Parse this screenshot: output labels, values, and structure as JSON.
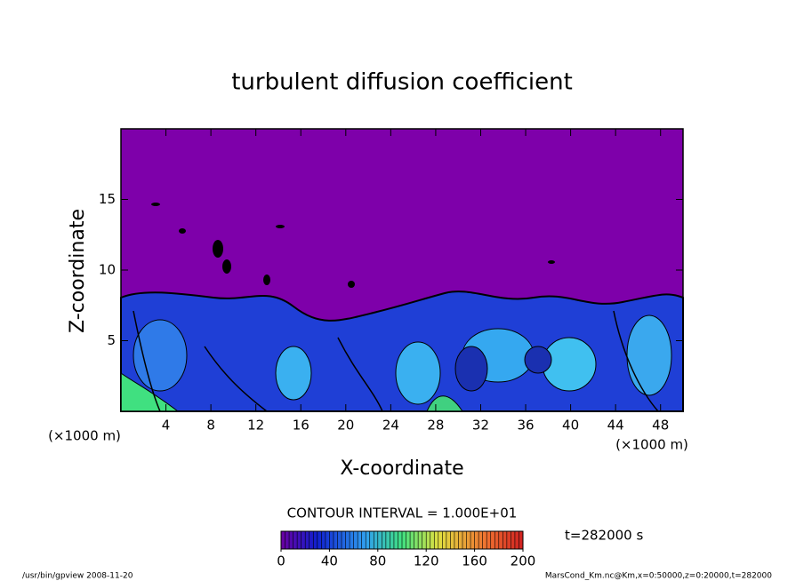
{
  "chart_data": {
    "type": "contour",
    "title": "turbulent diffusion coefficient",
    "xlabel": "X-coordinate",
    "ylabel": "Z-coordinate",
    "x_unit": "(×1000 m)",
    "y_unit": "(×1000 m)",
    "xlim": [
      0,
      50
    ],
    "xticks": [
      4,
      8,
      12,
      16,
      20,
      24,
      28,
      32,
      36,
      40,
      44,
      48
    ],
    "ylim": [
      0,
      20
    ],
    "yticks": [
      5,
      10,
      15
    ],
    "contour_interval": "CONTOUR INTERVAL = 1.000E+01",
    "time_label": "t=282000 s",
    "colorbar": {
      "lim": [
        0,
        200
      ],
      "ticks": [
        0,
        40,
        80,
        120,
        160,
        200
      ]
    },
    "footer_left": "/usr/bin/gpview   2008-11-20",
    "footer_right": "MarsCond_Km.nc@Km,x=0:50000,z=0:20000,t=282000"
  }
}
